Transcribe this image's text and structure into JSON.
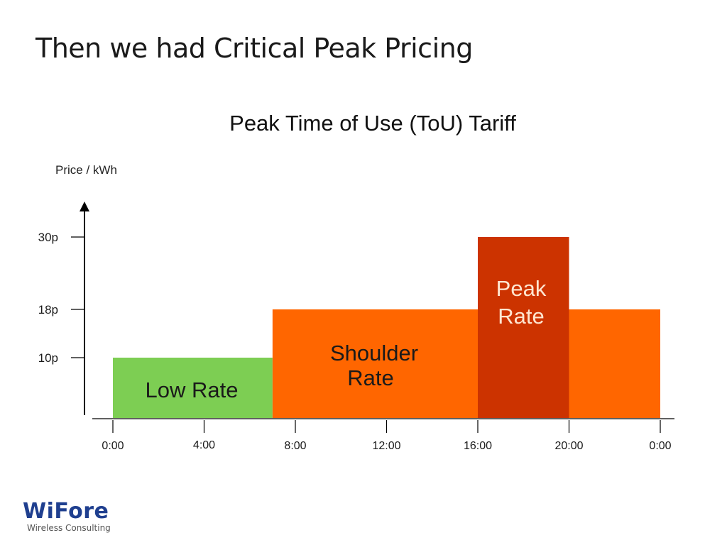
{
  "slide": {
    "title": "Then we had Critical Peak Pricing"
  },
  "logo": {
    "name": "WiFore",
    "subtitle": "Wireless Consulting"
  },
  "chart_data": {
    "type": "bar",
    "title": "Peak Time of Use (ToU) Tariff",
    "ylabel": "Price / kWh",
    "xlabel": "",
    "x_ticks": [
      "0:00",
      "4:00",
      "8:00",
      "12:00",
      "16:00",
      "20:00",
      "0:00"
    ],
    "x_tick_hours": [
      0,
      4,
      8,
      12,
      16,
      20,
      24
    ],
    "y_ticks": [
      {
        "value": 10,
        "label": "10p"
      },
      {
        "value": 18,
        "label": "18p"
      },
      {
        "value": 30,
        "label": "30p"
      }
    ],
    "xlim": [
      0,
      24
    ],
    "ylim": [
      0,
      30
    ],
    "segments": [
      {
        "name": "low-rate",
        "label": [
          "Low Rate"
        ],
        "start_hour": 0,
        "end_hour": 7,
        "price": 10,
        "color": "#7dce53"
      },
      {
        "name": "shoulder-rate",
        "label": [
          "Shoulder",
          "Rate"
        ],
        "start_hour": 7,
        "end_hour": 24,
        "price": 18,
        "color": "#ff6600"
      },
      {
        "name": "peak-rate",
        "label": [
          "Peak",
          "Rate"
        ],
        "start_hour": 16,
        "end_hour": 20,
        "price": 30,
        "color": "#cc3300"
      }
    ],
    "grid": false,
    "legend": "none"
  }
}
